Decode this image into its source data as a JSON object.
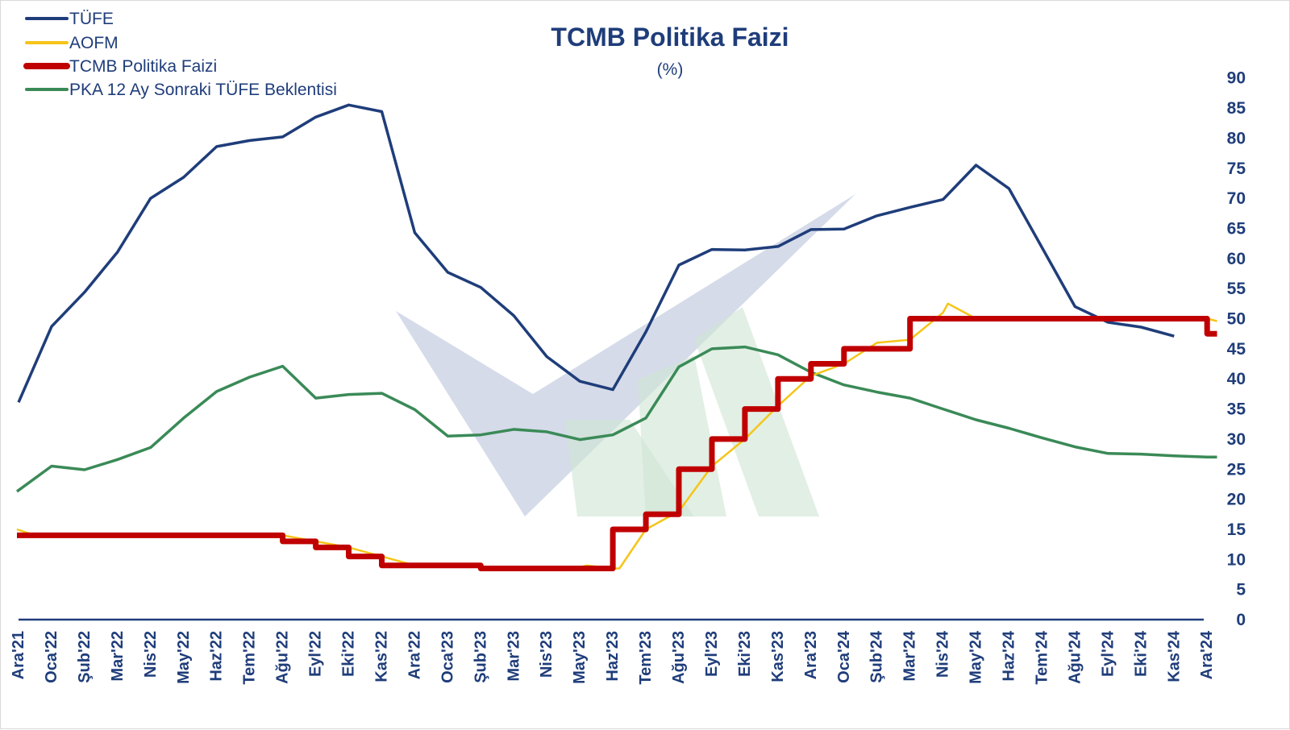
{
  "colors": {
    "tufe": "#1f3d7a",
    "aofm": "#f5c518",
    "policy": "#c00000",
    "pka": "#3a8a57",
    "axis": "#1f3d7a",
    "watermark_blue": "#c7cfe2",
    "watermark_green": "#cfe5d4"
  },
  "chart_data": {
    "type": "line",
    "title": "TCMB Politika Faizi",
    "subtitle": "(%)",
    "ylim": [
      0,
      90
    ],
    "yticks": [
      0,
      5,
      10,
      15,
      20,
      25,
      30,
      35,
      40,
      45,
      50,
      55,
      60,
      65,
      70,
      75,
      80,
      85,
      90
    ],
    "y_axis_position": "right",
    "grid": false,
    "legend_position": "top-left",
    "categories": [
      "Ara'21",
      "Oca'22",
      "Şub'22",
      "Mar'22",
      "Nis'22",
      "May'22",
      "Haz'22",
      "Tem'22",
      "Ağu'22",
      "Eyl'22",
      "Eki'22",
      "Kas'22",
      "Ara'22",
      "Oca'23",
      "Şub'23",
      "Mar'23",
      "Nis'23",
      "May'23",
      "Haz'23",
      "Tem'23",
      "Ağu'23",
      "Eyl'23",
      "Eki'23",
      "Kas'23",
      "Ara'23",
      "Oca'24",
      "Şub'24",
      "Mar'24",
      "Nis'24",
      "May'24",
      "Haz'24",
      "Tem'24",
      "Ağu'24",
      "Eyl'24",
      "Eki'24",
      "Kas'24",
      "Ara'24"
    ],
    "series": [
      {
        "name": "TÜFE",
        "key": "tufe",
        "style": "line",
        "points": [
          [
            0,
            36.1
          ],
          [
            1,
            48.7
          ],
          [
            2,
            54.4
          ],
          [
            3,
            61.1
          ],
          [
            4,
            70.0
          ],
          [
            5,
            73.5
          ],
          [
            6,
            78.6
          ],
          [
            7,
            79.6
          ],
          [
            8,
            80.2
          ],
          [
            9,
            83.5
          ],
          [
            10,
            85.5
          ],
          [
            11,
            84.4
          ],
          [
            12,
            64.3
          ],
          [
            13,
            57.7
          ],
          [
            14,
            55.2
          ],
          [
            15,
            50.5
          ],
          [
            16,
            43.7
          ],
          [
            17,
            39.6
          ],
          [
            18,
            38.2
          ],
          [
            19,
            47.8
          ],
          [
            20,
            58.9
          ],
          [
            21,
            61.5
          ],
          [
            22,
            61.4
          ],
          [
            23,
            62.0
          ],
          [
            24,
            64.8
          ],
          [
            25,
            64.9
          ],
          [
            26,
            67.1
          ],
          [
            27,
            68.5
          ],
          [
            28,
            69.8
          ],
          [
            29,
            75.5
          ],
          [
            30,
            71.6
          ],
          [
            31,
            61.8
          ],
          [
            32,
            52.0
          ],
          [
            33,
            49.4
          ],
          [
            34,
            48.6
          ],
          [
            35,
            47.1
          ]
        ]
      },
      {
        "name": "AOFM",
        "key": "aofm",
        "style": "line",
        "points": [
          [
            -0.05,
            15
          ],
          [
            0.5,
            14
          ],
          [
            8.0,
            14
          ],
          [
            9.0,
            13
          ],
          [
            10.0,
            12
          ],
          [
            11.0,
            10.5
          ],
          [
            12.0,
            9
          ],
          [
            13.9,
            9
          ],
          [
            14.2,
            8.5
          ],
          [
            16.9,
            8.5
          ],
          [
            17.2,
            9
          ],
          [
            18.0,
            8.5
          ],
          [
            18.2,
            8.5
          ],
          [
            19.0,
            15
          ],
          [
            20.0,
            18
          ],
          [
            21.0,
            25.5
          ],
          [
            22.0,
            30
          ],
          [
            23.0,
            35.5
          ],
          [
            24.0,
            40.5
          ],
          [
            25.0,
            42.5
          ],
          [
            26.0,
            46
          ],
          [
            27.0,
            46.5
          ],
          [
            28.0,
            51
          ],
          [
            28.15,
            52.5
          ],
          [
            29.0,
            50
          ],
          [
            35.0,
            50
          ],
          [
            36.0,
            50
          ],
          [
            36.3,
            49.6
          ]
        ]
      },
      {
        "name": "TCMB Politika Faizi",
        "key": "policy",
        "style": "step",
        "points": [
          [
            -0.05,
            14
          ],
          [
            8,
            14
          ],
          [
            8,
            13
          ],
          [
            9,
            13
          ],
          [
            9,
            12
          ],
          [
            10,
            12
          ],
          [
            10,
            10.5
          ],
          [
            11,
            10.5
          ],
          [
            11,
            9
          ],
          [
            14,
            9
          ],
          [
            14,
            8.5
          ],
          [
            18,
            8.5
          ],
          [
            18,
            15
          ],
          [
            19,
            15
          ],
          [
            19,
            17.5
          ],
          [
            20,
            17.5
          ],
          [
            20,
            25
          ],
          [
            21,
            25
          ],
          [
            21,
            30
          ],
          [
            22,
            30
          ],
          [
            22,
            35
          ],
          [
            23,
            35
          ],
          [
            23,
            40
          ],
          [
            24,
            40
          ],
          [
            24,
            42.5
          ],
          [
            25,
            42.5
          ],
          [
            25,
            45
          ],
          [
            27,
            45
          ],
          [
            27,
            50
          ],
          [
            36,
            50
          ],
          [
            36,
            47.5
          ],
          [
            36.3,
            47.5
          ]
        ]
      },
      {
        "name": "PKA 12 Ay Sonraki TÜFE Beklentisi",
        "key": "pka",
        "style": "line",
        "points": [
          [
            -0.05,
            21.3
          ],
          [
            1,
            25.5
          ],
          [
            2,
            24.9
          ],
          [
            3,
            26.6
          ],
          [
            4,
            28.6
          ],
          [
            5,
            33.5
          ],
          [
            6,
            37.9
          ],
          [
            7,
            40.3
          ],
          [
            8,
            42.1
          ],
          [
            9,
            36.8
          ],
          [
            10,
            37.4
          ],
          [
            11,
            37.6
          ],
          [
            12,
            34.9
          ],
          [
            13,
            30.5
          ],
          [
            14,
            30.7
          ],
          [
            15,
            31.6
          ],
          [
            16,
            31.2
          ],
          [
            17,
            29.9
          ],
          [
            18,
            30.7
          ],
          [
            19,
            33.5
          ],
          [
            20,
            42.0
          ],
          [
            21,
            45.0
          ],
          [
            22,
            45.3
          ],
          [
            23,
            44.0
          ],
          [
            24,
            41.1
          ],
          [
            25,
            39.0
          ],
          [
            26,
            37.8
          ],
          [
            27,
            36.8
          ],
          [
            28,
            35.0
          ],
          [
            29,
            33.2
          ],
          [
            30,
            31.8
          ],
          [
            31,
            30.2
          ],
          [
            32,
            28.7
          ],
          [
            33,
            27.6
          ],
          [
            34,
            27.5
          ],
          [
            35,
            27.2
          ],
          [
            36,
            27.0
          ],
          [
            36.3,
            27.0
          ]
        ]
      }
    ]
  }
}
